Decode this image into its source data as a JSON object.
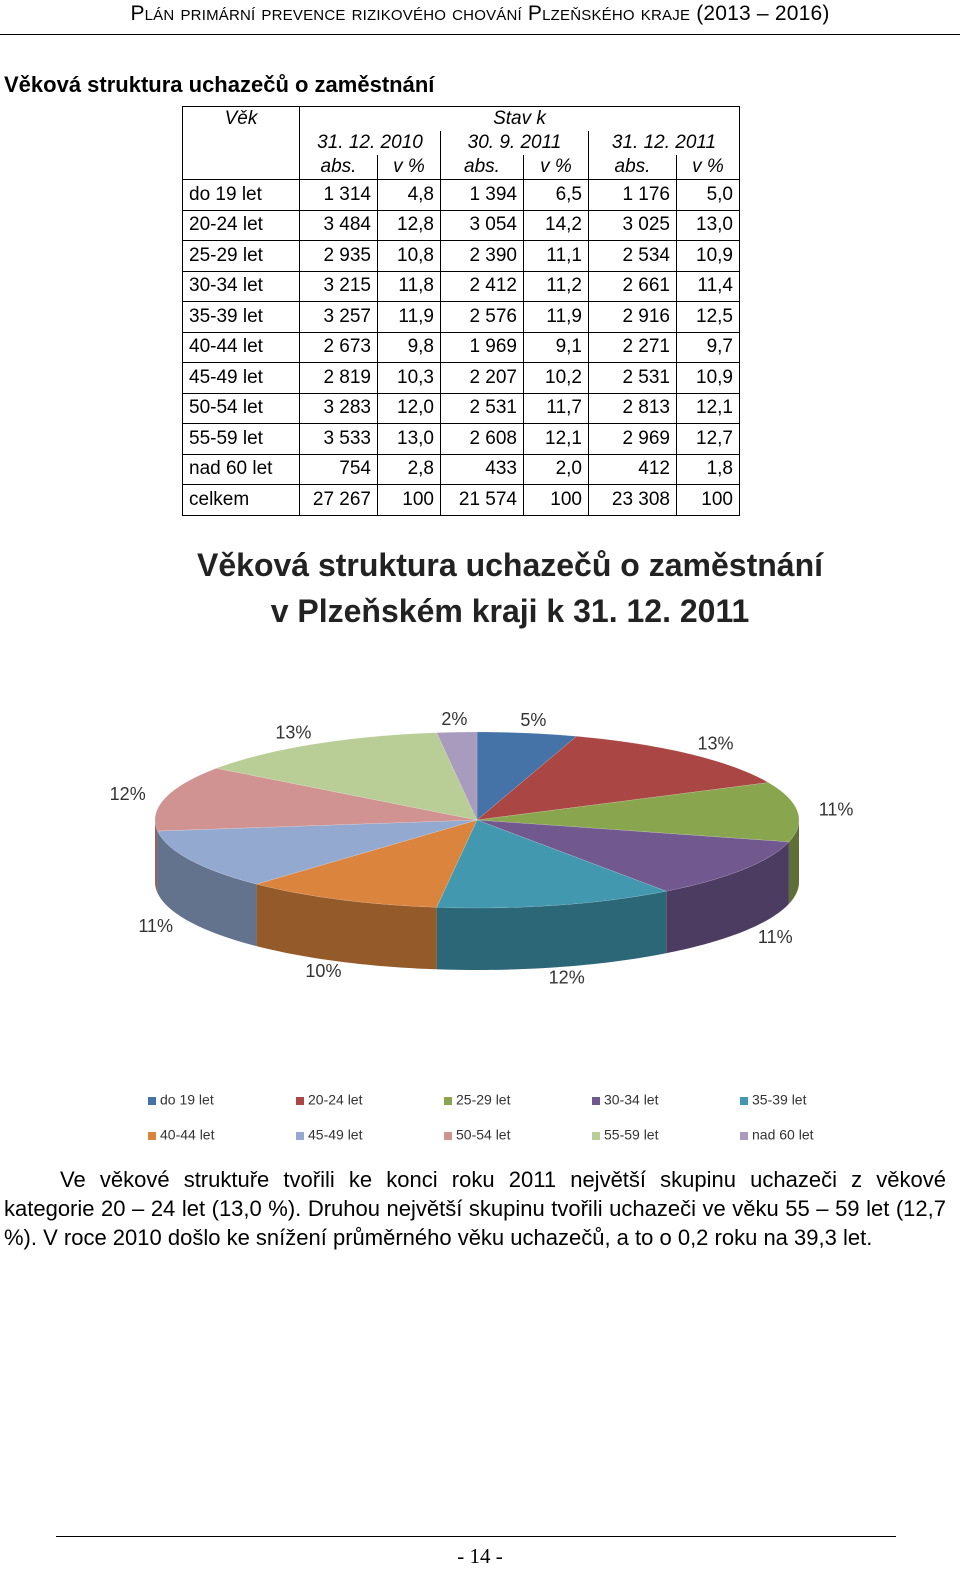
{
  "header": {
    "title": "Plán primární prevence rizikového chování Plzeňského kraje (2013 – 2016)"
  },
  "section_title": "Věková struktura uchazečů o zaměstnání",
  "table": {
    "head": {
      "age": "Věk",
      "stav": "Stav k",
      "dates": [
        "31. 12. 2010",
        "30. 9. 2011",
        "31. 12. 2011"
      ],
      "sub": [
        "abs.",
        "v %",
        "abs.",
        "v %",
        "abs.",
        "v %"
      ]
    },
    "rows": [
      [
        "do 19 let",
        "1 314",
        "4,8",
        "1 394",
        "6,5",
        "1 176",
        "5,0"
      ],
      [
        "20-24 let",
        "3 484",
        "12,8",
        "3 054",
        "14,2",
        "3 025",
        "13,0"
      ],
      [
        "25-29 let",
        "2 935",
        "10,8",
        "2 390",
        "11,1",
        "2 534",
        "10,9"
      ],
      [
        "30-34 let",
        "3 215",
        "11,8",
        "2 412",
        "11,2",
        "2 661",
        "11,4"
      ],
      [
        "35-39 let",
        "3 257",
        "11,9",
        "2 576",
        "11,9",
        "2 916",
        "12,5"
      ],
      [
        "40-44 let",
        "2 673",
        "9,8",
        "1 969",
        "9,1",
        "2 271",
        "9,7"
      ],
      [
        "45-49 let",
        "2 819",
        "10,3",
        "2 207",
        "10,2",
        "2 531",
        "10,9"
      ],
      [
        "50-54 let",
        "3 283",
        "12,0",
        "2 531",
        "11,7",
        "2 813",
        "12,1"
      ],
      [
        "55-59 let",
        "3 533",
        "13,0",
        "2 608",
        "12,1",
        "2 969",
        "12,7"
      ],
      [
        "nad 60 let",
        "754",
        "2,8",
        "433",
        "2,0",
        "412",
        "1,8"
      ],
      [
        "celkem",
        "27 267",
        "100",
        "21 574",
        "100",
        "23 308",
        "100"
      ]
    ]
  },
  "chart_data": {
    "type": "pie",
    "title": [
      "Věková struktura uchazečů o zaměstnání",
      "v Plzeňském kraji k 31. 12. 2011"
    ],
    "categories": [
      "do 19 let",
      "20-24 let",
      "25-29 let",
      "30-34 let",
      "35-39 let",
      "40-44 let",
      "45-49 let",
      "50-54 let",
      "55-59 let",
      "nad 60 let"
    ],
    "values": [
      5,
      13,
      11,
      11,
      12,
      10,
      11,
      12,
      13,
      2
    ],
    "value_labels": [
      "5%",
      "13%",
      "11%",
      "11%",
      "12%",
      "10%",
      "11%",
      "12%",
      "13%",
      "2%"
    ],
    "colors": [
      "#4572A7",
      "#AA4643",
      "#89A54E",
      "#71588F",
      "#4198AF",
      "#DB843D",
      "#93A9CF",
      "#D19392",
      "#B9CD96",
      "#A99BBD"
    ],
    "legend": "bottom"
  },
  "paragraph": "Ve věkové struktuře tvořili ke konci roku 2011 největší skupinu uchazeči z věkové kategorie 20 – 24 let (13,0 %). Druhou největší skupinu tvořili uchazeči ve věku 55 – 59 let (12,7 %). V roce 2010 došlo ke snížení průměrného věku uchazečů, a to o 0,2 roku na 39,3 let.",
  "page_number": "- 14 -"
}
